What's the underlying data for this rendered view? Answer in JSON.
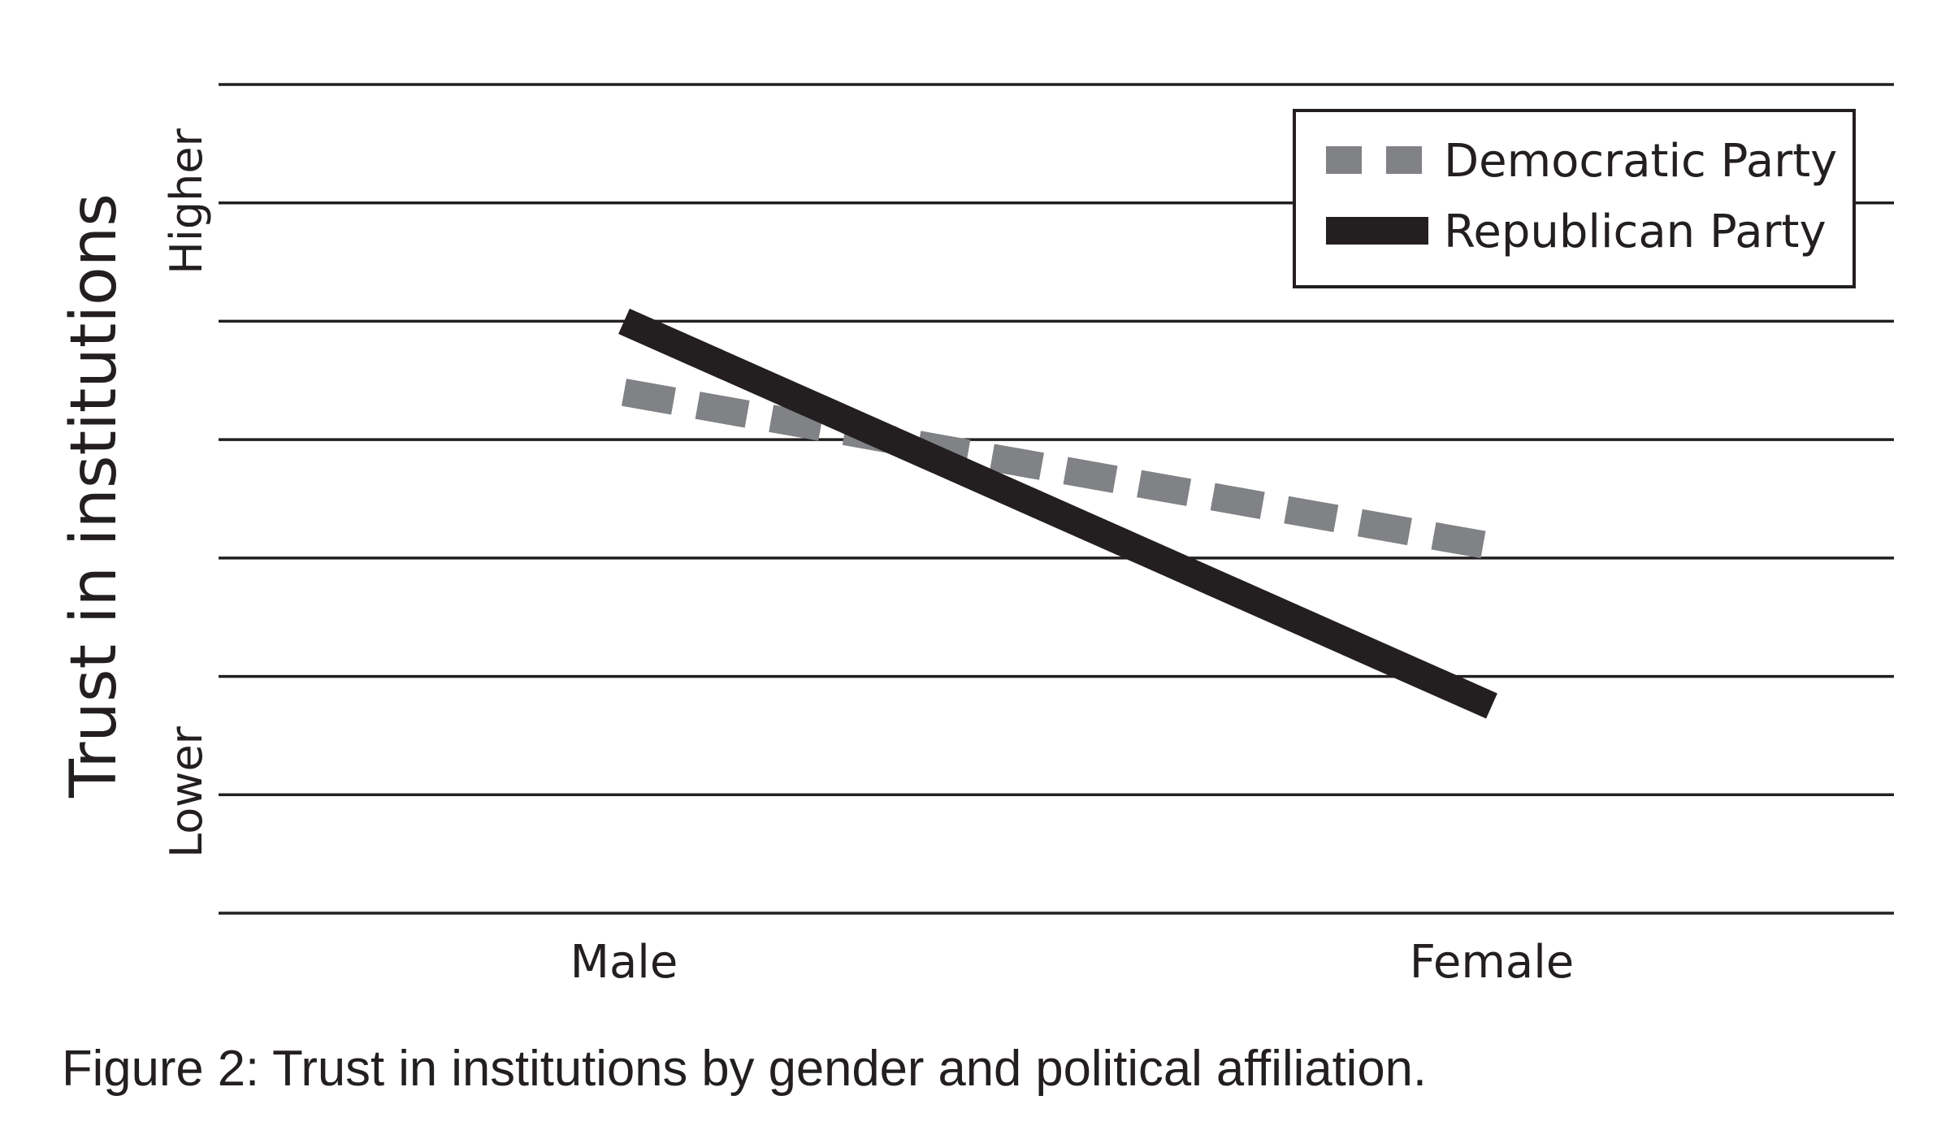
{
  "chart_data": {
    "type": "line",
    "title": "",
    "caption": "Figure 2: Trust in institutions by gender and political affiliation.",
    "ylabel": "Trust in institutions",
    "y_high_label": "Higher",
    "y_low_label": "Lower",
    "categories": [
      "Male",
      "Female"
    ],
    "ylim": [
      0,
      7
    ],
    "grid": true,
    "legend_position": "top-right",
    "series": [
      {
        "name": "Democratic Party",
        "values": [
          4.4,
          3.1
        ],
        "style": "dashed",
        "color": "#808285"
      },
      {
        "name": "Republican Party",
        "values": [
          5.0,
          1.75
        ],
        "style": "solid",
        "color": "#231f20"
      }
    ]
  }
}
